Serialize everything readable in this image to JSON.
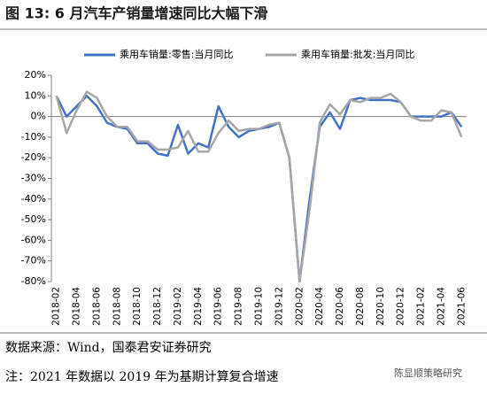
{
  "chart_data": {
    "type": "line",
    "title": "图 13:  6 月汽车产销量增速同比大幅下滑",
    "categories": [
      "2018-02",
      null,
      "2018-04",
      null,
      "2018-06",
      null,
      "2018-08",
      null,
      "2018-10",
      null,
      "2018-12",
      null,
      "2019-02",
      null,
      "2019-04",
      null,
      "2019-06",
      null,
      "2019-08",
      null,
      "2019-10",
      null,
      "2019-12",
      null,
      "2020-02",
      null,
      "2020-04",
      null,
      "2020-06",
      null,
      "2020-08",
      null,
      "2020-10",
      null,
      "2020-12",
      null,
      "2021-02",
      null,
      "2021-04",
      null,
      "2021-06"
    ],
    "series": [
      {
        "name": "乘用车销量:零售:当月同比",
        "color": "#4472c4",
        "values": [
          10,
          0,
          5,
          10,
          5,
          -3,
          -5,
          -6,
          -13,
          -13,
          -18,
          -19,
          -4,
          -18,
          -13,
          -15,
          5,
          -5,
          -10,
          -7,
          -6,
          -5,
          -3,
          -20,
          -80,
          -40,
          -5,
          2,
          -6,
          8,
          9,
          8,
          8,
          8,
          7,
          0,
          0,
          0,
          0,
          2,
          -5
        ]
      },
      {
        "name": "乘用车销量:批发:当月同比",
        "color": "#a6a6a6",
        "values": [
          10,
          -8,
          3,
          12,
          9,
          0,
          -5,
          -5,
          -12,
          -12,
          -16,
          -16,
          -15,
          -7,
          -17,
          -17,
          -8,
          -2,
          -7,
          -6,
          -6,
          -4,
          -3,
          -20,
          -80,
          -45,
          -3,
          6,
          1,
          8,
          7,
          9,
          9,
          11,
          7,
          0,
          -2,
          -2,
          3,
          2,
          -10
        ]
      }
    ],
    "ylim": [
      -80,
      20
    ],
    "yticks": [
      {
        "value": 20,
        "label": "20%"
      },
      {
        "value": 10,
        "label": "10%"
      },
      {
        "value": 0,
        "label": "0%"
      },
      {
        "value": -10,
        "label": "-10%"
      },
      {
        "value": -20,
        "label": "-20%"
      },
      {
        "value": -30,
        "label": "-30%"
      },
      {
        "value": -40,
        "label": "-40%"
      },
      {
        "value": -50,
        "label": "-50%"
      },
      {
        "value": -60,
        "label": "-60%"
      },
      {
        "value": -70,
        "label": "-70%"
      },
      {
        "value": -80,
        "label": "-80%"
      }
    ],
    "legend": "top",
    "source": "数据来源：Wind，国泰君安证券研究",
    "note": "注：2021 年数据以 2019 年为基期计算复合增速",
    "watermark": "陈显顺策略研究"
  }
}
